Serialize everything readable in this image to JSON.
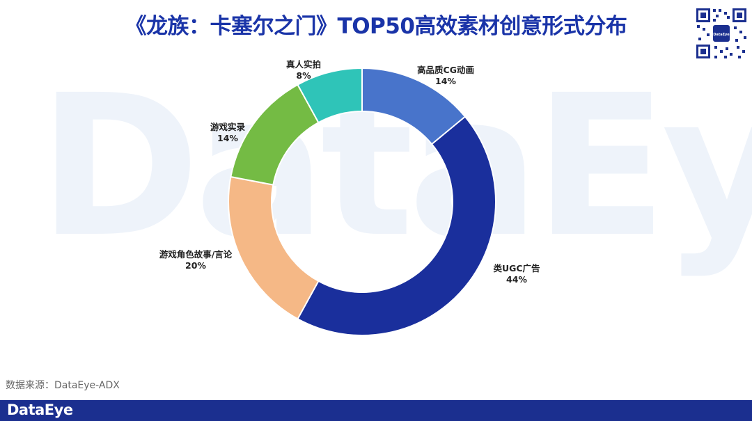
{
  "header": {
    "title": "《龙族：卡塞尔之门》TOP50高效素材创意形式分布"
  },
  "watermark": {
    "text": "DataEye"
  },
  "qr_code": {
    "label": "DataEye"
  },
  "chart_data": {
    "type": "pie",
    "variant": "donut",
    "title": "《龙族：卡塞尔之门》TOP50高效素材创意形式分布",
    "categories": [
      "高品质CG动画",
      "类UGC广告",
      "游戏角色故事/言论",
      "游戏实录",
      "真人实拍"
    ],
    "values": [
      14,
      44,
      20,
      14,
      8
    ],
    "value_labels": [
      "14%",
      "44%",
      "20%",
      "14%",
      "8%"
    ],
    "colors": [
      "#4874cb",
      "#1a2f9c",
      "#f5b886",
      "#74bb44",
      "#2fc4b8"
    ],
    "unit": "%"
  },
  "source": {
    "text": "数据来源：DataEye-ADX"
  },
  "footer": {
    "brand": "DataEye",
    "color": "#1b2f8f"
  }
}
